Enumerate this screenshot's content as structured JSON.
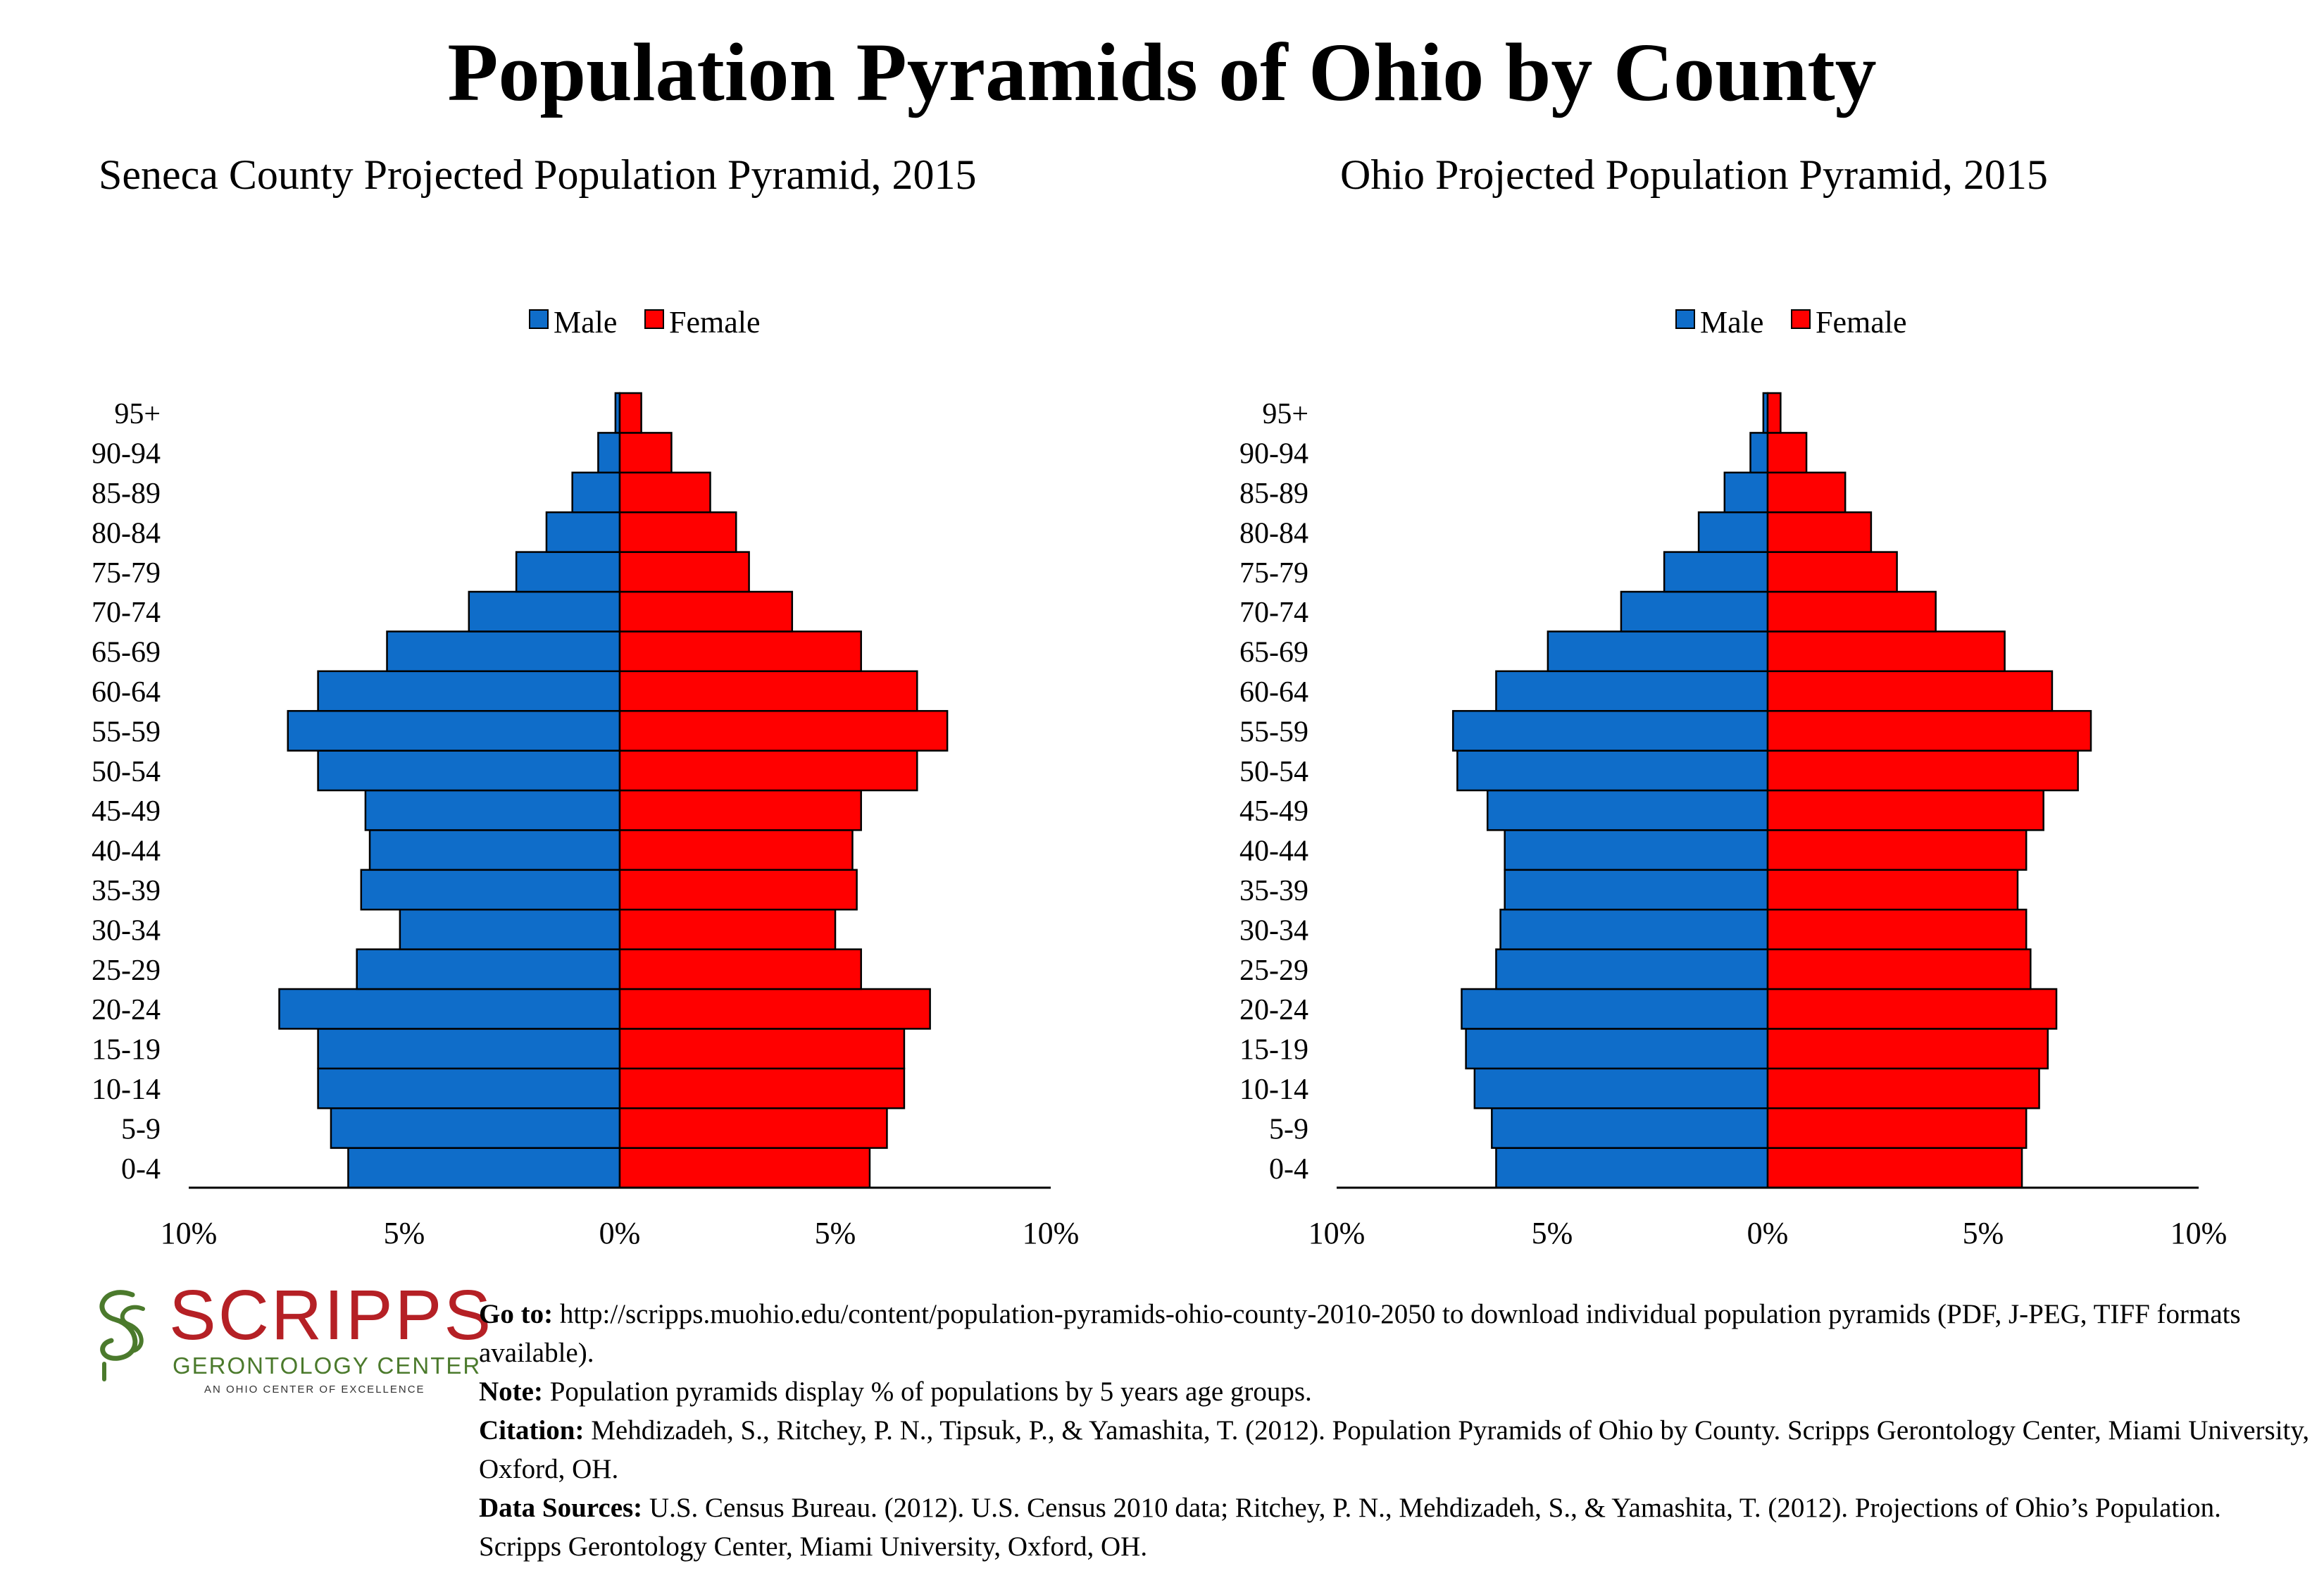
{
  "title": "Population Pyramids of Ohio by County",
  "colors": {
    "male": "#0f6dc9",
    "female": "#ff0000",
    "logo_red": "#b52025",
    "logo_green": "#4b7a2c"
  },
  "chart_data": [
    {
      "type": "bar",
      "orientation": "horizontal-pyramid",
      "title": "Seneca County Projected Population Pyramid, 2015",
      "legend": [
        "Male",
        "Female"
      ],
      "legend_position": "top-center",
      "categories": [
        "0-4",
        "5-9",
        "10-14",
        "15-19",
        "20-24",
        "25-29",
        "30-34",
        "35-39",
        "40-44",
        "45-49",
        "50-54",
        "55-59",
        "60-64",
        "65-69",
        "70-74",
        "75-79",
        "80-84",
        "85-89",
        "90-94",
        "95+"
      ],
      "series": [
        {
          "name": "Male",
          "values": [
            6.3,
            6.7,
            7.0,
            7.0,
            7.9,
            6.1,
            5.1,
            6.0,
            5.8,
            5.9,
            7.0,
            7.7,
            7.0,
            5.4,
            3.5,
            2.4,
            1.7,
            1.1,
            0.5,
            0.1
          ]
        },
        {
          "name": "Female",
          "values": [
            5.8,
            6.2,
            6.6,
            6.6,
            7.2,
            5.6,
            5.0,
            5.5,
            5.4,
            5.6,
            6.9,
            7.6,
            6.9,
            5.6,
            4.0,
            3.0,
            2.7,
            2.1,
            1.2,
            0.5
          ]
        }
      ],
      "xticks": [
        "10%",
        "5%",
        "0%",
        "5%",
        "10%"
      ],
      "xlim": [
        -10,
        10
      ],
      "grid": false
    },
    {
      "type": "bar",
      "orientation": "horizontal-pyramid",
      "title": "Ohio Projected Population Pyramid, 2015",
      "legend": [
        "Male",
        "Female"
      ],
      "legend_position": "top-center",
      "categories": [
        "0-4",
        "5-9",
        "10-14",
        "15-19",
        "20-24",
        "25-29",
        "30-34",
        "35-39",
        "40-44",
        "45-49",
        "50-54",
        "55-59",
        "60-64",
        "65-69",
        "70-74",
        "75-79",
        "80-84",
        "85-89",
        "90-94",
        "95+"
      ],
      "series": [
        {
          "name": "Male",
          "values": [
            6.3,
            6.4,
            6.8,
            7.0,
            7.1,
            6.3,
            6.2,
            6.1,
            6.1,
            6.5,
            7.2,
            7.3,
            6.3,
            5.1,
            3.4,
            2.4,
            1.6,
            1.0,
            0.4,
            0.1
          ]
        },
        {
          "name": "Female",
          "values": [
            5.9,
            6.0,
            6.3,
            6.5,
            6.7,
            6.1,
            6.0,
            5.8,
            6.0,
            6.4,
            7.2,
            7.5,
            6.6,
            5.5,
            3.9,
            3.0,
            2.4,
            1.8,
            0.9,
            0.3
          ]
        }
      ],
      "xticks": [
        "10%",
        "5%",
        "0%",
        "5%",
        "10%"
      ],
      "xlim": [
        -10,
        10
      ],
      "grid": false
    }
  ],
  "logo": {
    "word": "SCRIPPS",
    "sub": "GERONTOLOGY CENTER",
    "tag": "AN OHIO CENTER OF EXCELLENCE"
  },
  "footer": {
    "goto_label": "Go to:",
    "goto_text": "http://scripps.muohio.edu/content/population-pyramids-ohio-county-2010-2050 to download individual population pyramids (PDF, J-PEG, TIFF formats available).",
    "note_label": "Note:",
    "note_text": "Population pyramids display % of populations by 5 years age groups.",
    "citation_label": "Citation:",
    "citation_text": "Mehdizadeh, S., Ritchey, P. N., Tipsuk, P., & Yamashita, T. (2012). Population Pyramids of Ohio by County. Scripps Gerontology Center, Miami University, Oxford, OH.",
    "sources_label": "Data Sources:",
    "sources_text": "U.S. Census Bureau. (2012). U.S. Census 2010 data; Ritchey, P. N., Mehdizadeh, S., & Yamashita, T. (2012). Projections of Ohio’s Population. Scripps Gerontology Center, Miami University, Oxford, OH."
  }
}
